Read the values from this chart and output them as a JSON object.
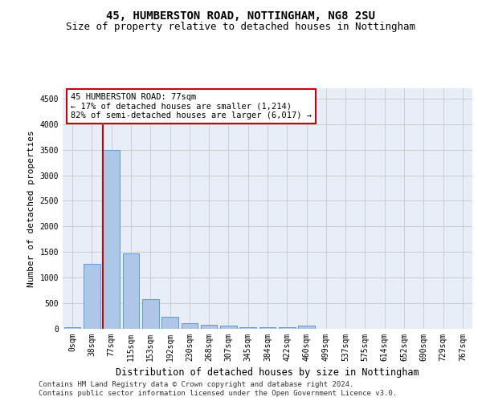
{
  "title1": "45, HUMBERSTON ROAD, NOTTINGHAM, NG8 2SU",
  "title2": "Size of property relative to detached houses in Nottingham",
  "xlabel": "Distribution of detached houses by size in Nottingham",
  "ylabel": "Number of detached properties",
  "bar_labels": [
    "0sqm",
    "38sqm",
    "77sqm",
    "115sqm",
    "153sqm",
    "192sqm",
    "230sqm",
    "268sqm",
    "307sqm",
    "345sqm",
    "384sqm",
    "422sqm",
    "460sqm",
    "499sqm",
    "537sqm",
    "575sqm",
    "614sqm",
    "652sqm",
    "690sqm",
    "729sqm",
    "767sqm"
  ],
  "bar_values": [
    30,
    1270,
    3500,
    1480,
    580,
    240,
    110,
    80,
    55,
    30,
    30,
    30,
    55,
    0,
    0,
    0,
    0,
    0,
    0,
    0,
    0
  ],
  "bar_color": "#aec6e8",
  "bar_edge_color": "#5b9bd5",
  "highlight_line_index": 2,
  "highlight_line_color": "#cc0000",
  "annotation_text": "45 HUMBERSTON ROAD: 77sqm\n← 17% of detached houses are smaller (1,214)\n82% of semi-detached houses are larger (6,017) →",
  "annotation_box_color": "#ffffff",
  "annotation_box_edge": "#cc0000",
  "ylim": [
    0,
    4700
  ],
  "yticks": [
    0,
    500,
    1000,
    1500,
    2000,
    2500,
    3000,
    3500,
    4000,
    4500
  ],
  "grid_color": "#cccccc",
  "bg_color": "#e8eef7",
  "footnote1": "Contains HM Land Registry data © Crown copyright and database right 2024.",
  "footnote2": "Contains public sector information licensed under the Open Government Licence v3.0.",
  "title1_fontsize": 10,
  "title2_fontsize": 9,
  "xlabel_fontsize": 8.5,
  "ylabel_fontsize": 8,
  "tick_fontsize": 7,
  "annotation_fontsize": 7.5,
  "footnote_fontsize": 6.5
}
